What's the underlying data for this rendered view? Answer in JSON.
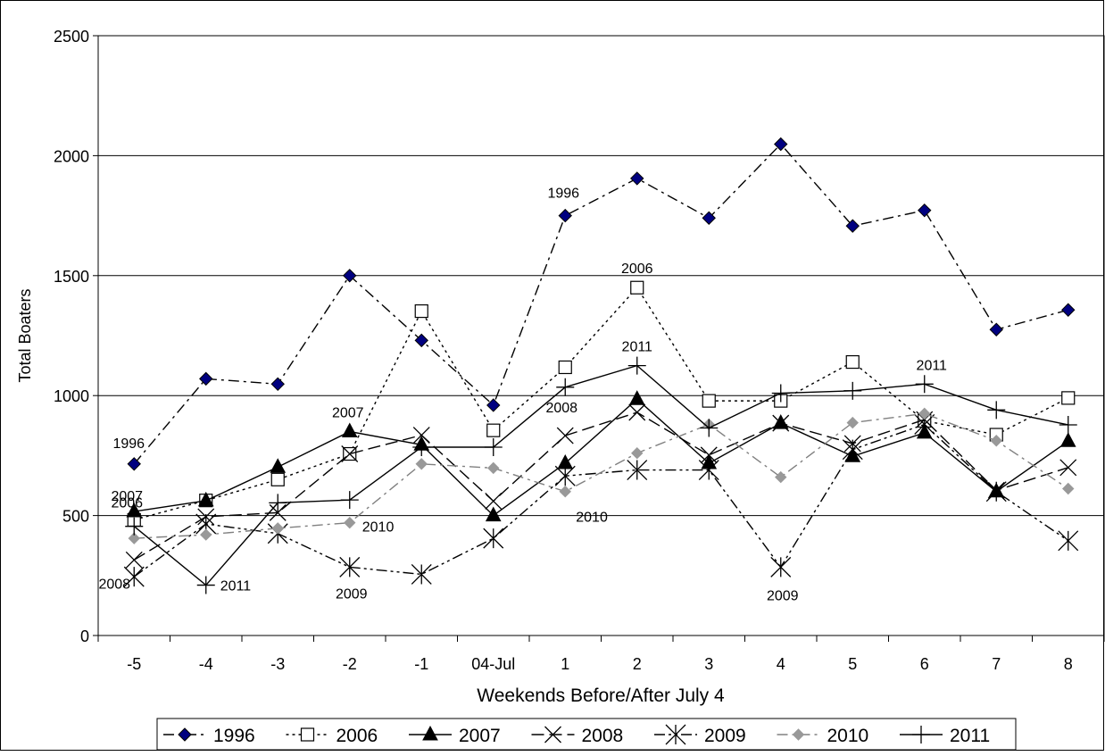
{
  "chart_data": {
    "type": "line",
    "title": "",
    "xlabel": "Weekends Before/After July 4",
    "ylabel": "Total Boaters",
    "categories": [
      "-5",
      "-4",
      "-3",
      "-2",
      "-1",
      "04-Jul",
      "1",
      "2",
      "3",
      "4",
      "5",
      "6",
      "7",
      "8"
    ],
    "ylim": [
      0,
      2500
    ],
    "yticks": [
      0,
      500,
      1000,
      1500,
      2000,
      2500
    ],
    "grid": "horizontal",
    "legend_position": "bottom",
    "series": [
      {
        "name": "1996",
        "marker": "diamond-filled",
        "dash": "dashdot",
        "color": "#000080",
        "values": [
          715,
          1070,
          1048,
          1500,
          1230,
          960,
          1750,
          1905,
          1740,
          2048,
          1707,
          1772,
          1275,
          1357
        ]
      },
      {
        "name": "2006",
        "marker": "square-open",
        "dash": "dotted",
        "color": "#000000",
        "values": [
          482,
          563,
          650,
          757,
          1352,
          855,
          1118,
          1450,
          978,
          978,
          1140,
          895,
          837,
          990
        ]
      },
      {
        "name": "2007",
        "marker": "triangle-filled",
        "dash": "solid",
        "color": "#000000",
        "values": [
          517,
          562,
          702,
          850,
          795,
          500,
          718,
          985,
          718,
          885,
          747,
          845,
          600,
          810
        ]
      },
      {
        "name": "2008",
        "marker": "x",
        "dash": "longdash",
        "color": "#000000",
        "values": [
          315,
          495,
          512,
          757,
          835,
          560,
          833,
          930,
          752,
          885,
          800,
          900,
          605,
          700
        ]
      },
      {
        "name": "2009",
        "marker": "asterisk",
        "dash": "dashdotdot",
        "color": "#000000",
        "values": [
          245,
          465,
          425,
          285,
          255,
          405,
          665,
          690,
          690,
          285,
          775,
          880,
          600,
          395
        ]
      },
      {
        "name": "2010",
        "marker": "diamond-small",
        "dash": "dashdot-gray",
        "color": "#808080",
        "values": [
          405,
          420,
          447,
          470,
          715,
          698,
          600,
          760,
          880,
          660,
          887,
          925,
          812,
          612
        ]
      },
      {
        "name": "2011",
        "marker": "plus",
        "dash": "solid",
        "color": "#000000",
        "values": [
          455,
          210,
          553,
          565,
          785,
          785,
          1035,
          1125,
          865,
          1010,
          1020,
          1048,
          940,
          878
        ]
      }
    ],
    "annotations": [
      {
        "text": "1996",
        "series": "1996",
        "at": "-5"
      },
      {
        "text": "2006",
        "series": "2006",
        "at": "-5"
      },
      {
        "text": "2007",
        "series": "2007",
        "at": "-5"
      },
      {
        "text": "2008",
        "series": "2008",
        "at": "-5"
      },
      {
        "text": "2011",
        "series": "2011",
        "at": "-4"
      },
      {
        "text": "2007",
        "series": "2007",
        "at": "-2"
      },
      {
        "text": "2010",
        "series": "2010",
        "at": "-2"
      },
      {
        "text": "2009",
        "series": "2009",
        "at": "-2"
      },
      {
        "text": "1996",
        "series": "1996",
        "at": "1"
      },
      {
        "text": "2008",
        "series": "2008",
        "at": "1"
      },
      {
        "text": "2010",
        "series": "2010",
        "at": "1"
      },
      {
        "text": "2006",
        "series": "2006",
        "at": "2"
      },
      {
        "text": "2011",
        "series": "2011",
        "at": "2"
      },
      {
        "text": "2009",
        "series": "2009",
        "at": "4"
      },
      {
        "text": "2011",
        "series": "2011",
        "at": "6"
      }
    ]
  }
}
